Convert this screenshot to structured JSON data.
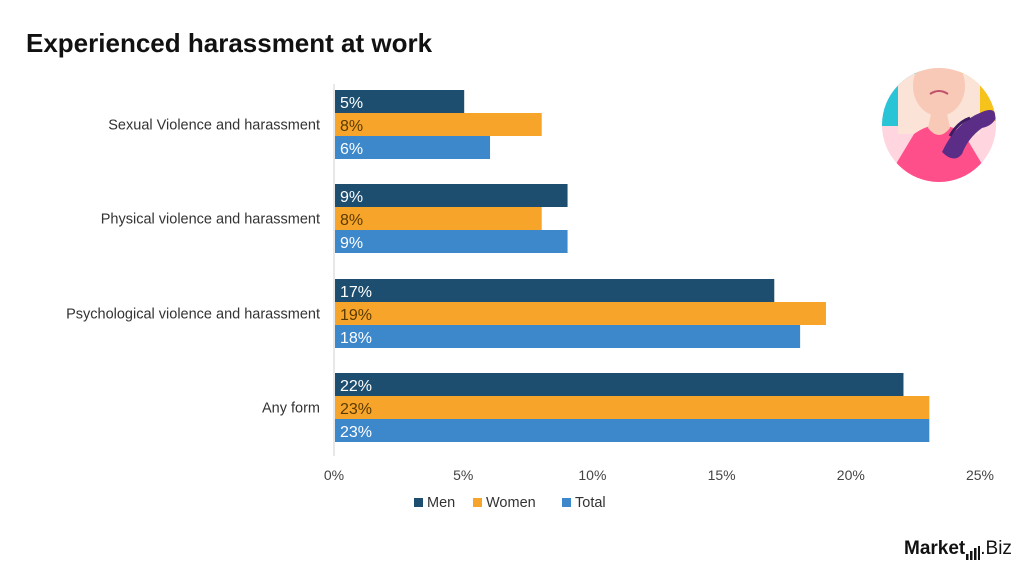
{
  "chart_data": {
    "type": "bar",
    "orientation": "horizontal",
    "title": "Experienced harassment at work",
    "categories": [
      "Sexual Violence and harassment",
      "Physical violence and harassment",
      "Psychological violence and harassment",
      "Any form"
    ],
    "series": [
      {
        "name": "Men",
        "color": "#1d4e6f",
        "values": [
          5,
          9,
          17,
          22
        ],
        "labels": [
          "5%",
          "9%",
          "17%",
          "22%"
        ]
      },
      {
        "name": "Women",
        "color": "#f6a52a",
        "values": [
          8,
          8,
          19,
          23
        ],
        "labels": [
          "8%",
          "8%",
          "19%",
          "23%"
        ]
      },
      {
        "name": "Total",
        "color": "#3d87cb",
        "values": [
          6,
          9,
          18,
          23
        ],
        "labels": [
          "6%",
          "9%",
          "18%",
          "23%"
        ]
      }
    ],
    "xlim": [
      0,
      25
    ],
    "x_ticks": [
      "0%",
      "5%",
      "10%",
      "15%",
      "20%",
      "25%"
    ],
    "legend_position": "bottom",
    "grid": false
  },
  "branding": {
    "logo_text_strong": "Market",
    "logo_text_rest": ".Biz",
    "illustration": "woman-harassed-hand-on-shoulder-icon"
  }
}
